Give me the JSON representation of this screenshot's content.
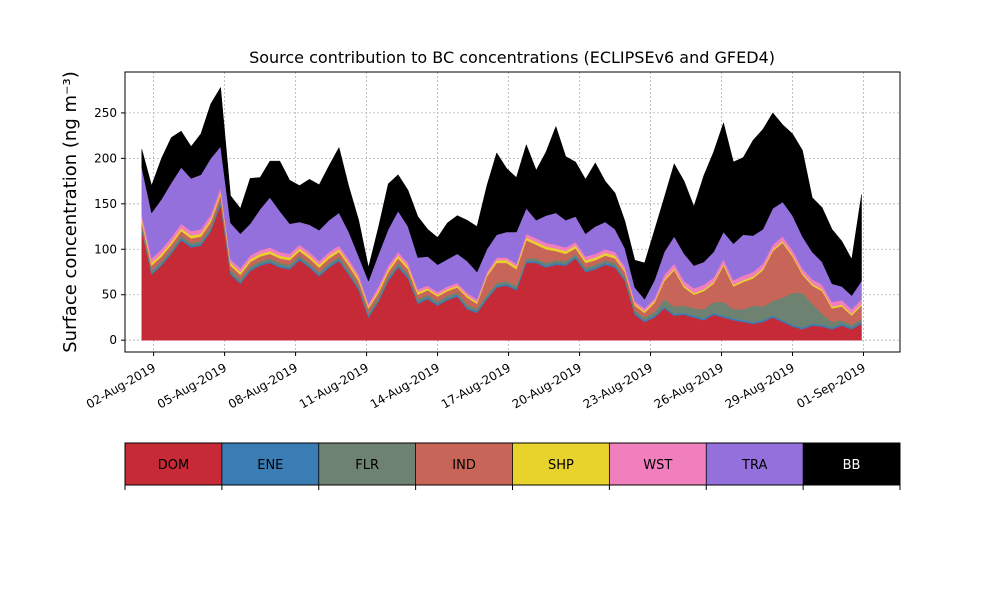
{
  "chart_data": {
    "type": "area",
    "stacked": true,
    "title": "Source contribution to BC concentrations (ECLIPSEv6 and GFED4)",
    "ylabel": "Surface concentration (ng m⁻³)",
    "xlabel": "",
    "ylim": [
      -13,
      295
    ],
    "yticks": [
      0,
      50,
      100,
      150,
      200,
      250
    ],
    "grid": true,
    "x_start": "2019-08-01T12:00",
    "x_end": "2019-08-31T22:00",
    "xlim": [
      "2019-07-31T19:00",
      "2019-09-02T13:00"
    ],
    "xticks": [
      {
        "date": "2019-08-02",
        "label": "02-Aug-2019"
      },
      {
        "date": "2019-08-05",
        "label": "05-Aug-2019"
      },
      {
        "date": "2019-08-08",
        "label": "08-Aug-2019"
      },
      {
        "date": "2019-08-11",
        "label": "11-Aug-2019"
      },
      {
        "date": "2019-08-14",
        "label": "14-Aug-2019"
      },
      {
        "date": "2019-08-17",
        "label": "17-Aug-2019"
      },
      {
        "date": "2019-08-20",
        "label": "20-Aug-2019"
      },
      {
        "date": "2019-08-23",
        "label": "23-Aug-2019"
      },
      {
        "date": "2019-08-26",
        "label": "26-Aug-2019"
      },
      {
        "date": "2019-08-29",
        "label": "29-Aug-2019"
      },
      {
        "date": "2019-09-01",
        "label": "01-Sep-2019"
      }
    ],
    "legend_position": "bottom",
    "series": [
      {
        "name": "DOM",
        "color": "#c62a36",
        "values": [
          120,
          72,
          82,
          95,
          110,
          102,
          104,
          120,
          148,
          72,
          62,
          76,
          82,
          85,
          80,
          78,
          88,
          80,
          70,
          80,
          87,
          72,
          55,
          25,
          42,
          65,
          80,
          68,
          40,
          45,
          38,
          44,
          48,
          34,
          30,
          45,
          58,
          60,
          55,
          85,
          85,
          80,
          83,
          82,
          90,
          75,
          78,
          83,
          80,
          65,
          28,
          20,
          25,
          35,
          27,
          28,
          25,
          22,
          28,
          25,
          22,
          20,
          18,
          20,
          25,
          20,
          15,
          12,
          16,
          15,
          12,
          16,
          12,
          18
        ]
      },
      {
        "name": "ENE",
        "color": "#3a7db5",
        "values": [
          2,
          2,
          2,
          2,
          2,
          2,
          2,
          2,
          3,
          2,
          2,
          2,
          2,
          2,
          2,
          2,
          2,
          2,
          2,
          2,
          2,
          2,
          2,
          2,
          2,
          2,
          2,
          2,
          2,
          2,
          2,
          2,
          2,
          2,
          2,
          2,
          2,
          2,
          2,
          2,
          2,
          2,
          2,
          2,
          2,
          2,
          2,
          2,
          2,
          2,
          2,
          2,
          2,
          2,
          2,
          2,
          2,
          2,
          2,
          2,
          2,
          2,
          2,
          2,
          2,
          2,
          2,
          2,
          2,
          2,
          2,
          2,
          2,
          2
        ]
      },
      {
        "name": "FLR",
        "color": "#6d8270",
        "values": [
          3,
          3,
          3,
          3,
          3,
          3,
          3,
          3,
          3,
          3,
          3,
          3,
          3,
          3,
          3,
          3,
          3,
          3,
          3,
          3,
          3,
          3,
          3,
          3,
          3,
          3,
          3,
          3,
          3,
          3,
          3,
          3,
          3,
          3,
          3,
          3,
          3,
          3,
          3,
          3,
          3,
          3,
          3,
          3,
          3,
          3,
          3,
          3,
          3,
          3,
          3,
          3,
          4,
          8,
          8,
          8,
          8,
          10,
          12,
          15,
          10,
          12,
          18,
          15,
          16,
          25,
          35,
          38,
          22,
          12,
          6,
          4,
          3,
          3
        ]
      },
      {
        "name": "IND",
        "color": "#c76658",
        "values": [
          5,
          5,
          5,
          5,
          5,
          5,
          5,
          5,
          6,
          5,
          5,
          5,
          5,
          5,
          5,
          5,
          5,
          5,
          5,
          5,
          5,
          5,
          5,
          5,
          5,
          5,
          5,
          5,
          5,
          5,
          5,
          5,
          5,
          8,
          5,
          20,
          22,
          20,
          18,
          20,
          15,
          15,
          10,
          8,
          6,
          5,
          5,
          5,
          5,
          5,
          5,
          5,
          10,
          20,
          40,
          20,
          15,
          20,
          20,
          40,
          25,
          30,
          30,
          40,
          55,
          60,
          40,
          20,
          20,
          25,
          15,
          15,
          10,
          15
        ]
      },
      {
        "name": "SHP",
        "color": "#e8d22c",
        "values": [
          3,
          3,
          3,
          3,
          3,
          3,
          3,
          3,
          3,
          3,
          3,
          3,
          3,
          3,
          3,
          3,
          3,
          3,
          3,
          3,
          3,
          3,
          3,
          2,
          3,
          3,
          3,
          3,
          3,
          2,
          2,
          2,
          2,
          2,
          2,
          2,
          3,
          3,
          3,
          3,
          3,
          3,
          3,
          3,
          3,
          3,
          3,
          3,
          3,
          2,
          2,
          2,
          2,
          2,
          2,
          2,
          2,
          2,
          2,
          2,
          2,
          2,
          2,
          2,
          2,
          2,
          2,
          2,
          2,
          2,
          2,
          2,
          2,
          2
        ]
      },
      {
        "name": "WST",
        "color": "#f27fbd",
        "values": [
          5,
          5,
          5,
          5,
          5,
          5,
          5,
          5,
          5,
          4,
          4,
          4,
          4,
          4,
          4,
          4,
          4,
          4,
          4,
          4,
          4,
          4,
          4,
          3,
          4,
          4,
          4,
          4,
          3,
          3,
          3,
          3,
          3,
          3,
          3,
          3,
          3,
          3,
          3,
          4,
          4,
          4,
          4,
          4,
          4,
          4,
          4,
          4,
          4,
          4,
          3,
          3,
          3,
          5,
          5,
          5,
          5,
          5,
          5,
          5,
          5,
          5,
          5,
          5,
          5,
          5,
          5,
          5,
          5,
          5,
          5,
          5,
          5,
          5
        ]
      },
      {
        "name": "TRA",
        "color": "#9370db",
        "values": [
          52,
          50,
          55,
          60,
          62,
          58,
          60,
          62,
          45,
          40,
          38,
          35,
          45,
          55,
          45,
          33,
          25,
          30,
          34,
          35,
          36,
          30,
          20,
          25,
          35,
          40,
          45,
          40,
          35,
          32,
          30,
          30,
          32,
          35,
          30,
          25,
          25,
          28,
          35,
          28,
          20,
          30,
          35,
          30,
          28,
          25,
          30,
          30,
          25,
          20,
          15,
          10,
          20,
          25,
          30,
          30,
          25,
          25,
          28,
          30,
          40,
          45,
          40,
          38,
          40,
          38,
          38,
          35,
          30,
          25,
          20,
          15,
          15,
          20
        ]
      },
      {
        "name": "BB",
        "color": "#000000",
        "values": [
          20,
          30,
          45,
          50,
          40,
          35,
          45,
          60,
          65,
          30,
          28,
          50,
          35,
          40,
          55,
          48,
          40,
          50,
          50,
          60,
          72,
          50,
          40,
          15,
          30,
          50,
          40,
          40,
          45,
          30,
          30,
          40,
          42,
          45,
          50,
          70,
          90,
          70,
          60,
          70,
          55,
          70,
          95,
          70,
          60,
          60,
          70,
          45,
          40,
          30,
          30,
          40,
          55,
          60,
          80,
          80,
          65,
          95,
          110,
          120,
          90,
          85,
          105,
          110,
          105,
          85,
          90,
          95,
          60,
          60,
          60,
          50,
          40,
          95
        ]
      }
    ]
  }
}
